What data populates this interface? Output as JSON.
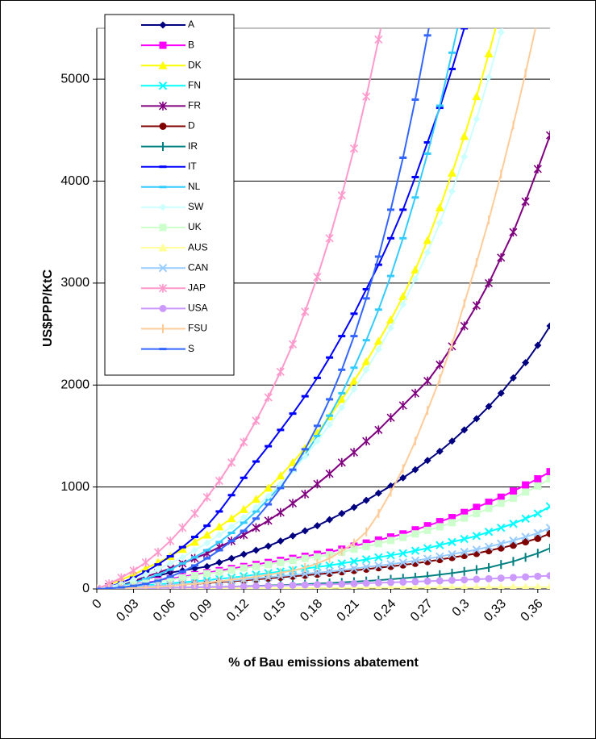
{
  "chart_data": {
    "type": "line",
    "ylabel": "US$PPP/KtC",
    "xlabel": "% of Bau emissions abatement",
    "x": [
      0,
      0.01,
      0.02,
      0.03,
      0.04,
      0.05,
      0.06,
      0.07,
      0.08,
      0.09,
      0.1,
      0.11,
      0.12,
      0.13,
      0.14,
      0.15,
      0.16,
      0.17,
      0.18,
      0.19,
      0.2,
      0.21,
      0.22,
      0.23,
      0.24,
      0.25,
      0.26,
      0.27,
      0.28,
      0.29,
      0.3,
      0.31,
      0.32,
      0.33,
      0.34,
      0.35,
      0.36,
      0.37
    ],
    "xlim": [
      0,
      0.37
    ],
    "xticks": [
      0,
      {
        "value": 0.03,
        "label": "0,03"
      },
      {
        "value": 0.06,
        "label": "0,06"
      },
      {
        "value": 0.09,
        "label": "0,09"
      },
      {
        "value": 0.12,
        "label": "0,12"
      },
      {
        "value": 0.15,
        "label": "0,15"
      },
      {
        "value": 0.18,
        "label": "0,18"
      },
      {
        "value": 0.21,
        "label": "0,21"
      },
      {
        "value": 0.24,
        "label": "0,24"
      },
      {
        "value": 0.27,
        "label": "0,27"
      },
      {
        "value": 0.3,
        "label": "0,3"
      },
      {
        "value": 0.33,
        "label": "0,33"
      },
      {
        "value": 0.36,
        "label": "0,36"
      }
    ],
    "ylim": [
      0,
      5500
    ],
    "yticks": [
      0,
      1000,
      2000,
      3000,
      4000,
      5000
    ],
    "grid": true,
    "legend": "upper left",
    "series": [
      {
        "name": "A",
        "color": "#000080",
        "marker": "diamond",
        "values": [
          0,
          20,
          40,
          70,
          100,
          130,
          160,
          180,
          200,
          220,
          260,
          300,
          340,
          380,
          420,
          470,
          520,
          570,
          620,
          680,
          740,
          800,
          870,
          940,
          1010,
          1090,
          1170,
          1260,
          1350,
          1450,
          1560,
          1670,
          1790,
          1920,
          2070,
          2220,
          2390,
          2580
        ]
      },
      {
        "name": "B",
        "color": "#ff00ff",
        "marker": "square",
        "values": [
          0,
          15,
          30,
          45,
          60,
          80,
          100,
          120,
          140,
          160,
          180,
          200,
          220,
          240,
          260,
          280,
          300,
          320,
          340,
          360,
          390,
          420,
          450,
          480,
          510,
          540,
          580,
          620,
          660,
          700,
          750,
          800,
          850,
          900,
          960,
          1020,
          1080,
          1150
        ]
      },
      {
        "name": "DK",
        "color": "#ffff00",
        "marker": "triangle",
        "values": [
          0,
          40,
          90,
          140,
          200,
          260,
          320,
          390,
          460,
          530,
          610,
          690,
          780,
          880,
          990,
          1110,
          1240,
          1380,
          1530,
          1690,
          1860,
          2040,
          2230,
          2430,
          2640,
          2870,
          3130,
          3420,
          3740,
          4080,
          4440,
          4830,
          5250,
          5700,
          null,
          null,
          null,
          null
        ]
      },
      {
        "name": "FN",
        "color": "#00ffff",
        "marker": "x",
        "values": [
          0,
          5,
          15,
          25,
          35,
          45,
          55,
          65,
          75,
          85,
          100,
          110,
          125,
          140,
          155,
          170,
          185,
          200,
          215,
          230,
          250,
          270,
          290,
          310,
          330,
          350,
          375,
          400,
          430,
          460,
          490,
          520,
          560,
          600,
          640,
          690,
          740,
          810
        ]
      },
      {
        "name": "FR",
        "color": "#800080",
        "marker": "star",
        "values": [
          0,
          20,
          50,
          80,
          120,
          160,
          200,
          250,
          300,
          350,
          410,
          470,
          530,
          600,
          670,
          750,
          840,
          930,
          1030,
          1130,
          1240,
          1340,
          1450,
          1560,
          1680,
          1800,
          1920,
          2040,
          2200,
          2380,
          2580,
          2780,
          3000,
          3250,
          3500,
          3800,
          4120,
          4450
        ]
      },
      {
        "name": "D",
        "color": "#800000",
        "marker": "circle",
        "values": [
          0,
          3,
          10,
          17,
          23,
          30,
          37,
          44,
          50,
          57,
          67,
          74,
          84,
          94,
          104,
          114,
          124,
          134,
          144,
          154,
          168,
          181,
          194,
          208,
          221,
          235,
          251,
          268,
          288,
          308,
          328,
          348,
          375,
          402,
          429,
          462,
          496,
          543
        ]
      },
      {
        "name": "IR",
        "color": "#008080",
        "marker": "plus",
        "values": [
          0,
          2,
          4,
          6,
          8,
          10,
          12,
          14,
          16,
          18,
          20,
          23,
          26,
          30,
          34,
          38,
          42,
          47,
          52,
          58,
          64,
          71,
          78,
          86,
          95,
          105,
          115,
          126,
          140,
          155,
          172,
          190,
          210,
          240,
          270,
          310,
          350,
          400
        ]
      },
      {
        "name": "IT",
        "color": "#0000ff",
        "marker": "dash",
        "values": [
          0,
          20,
          60,
          110,
          170,
          240,
          320,
          410,
          510,
          620,
          760,
          920,
          1090,
          1250,
          1400,
          1560,
          1720,
          1890,
          2070,
          2270,
          2480,
          2700,
          2940,
          3180,
          3440,
          3720,
          4040,
          4380,
          4720,
          5100,
          5500,
          5950,
          null,
          null,
          null,
          null,
          null,
          null
        ]
      },
      {
        "name": "NL",
        "color": "#33ccff",
        "marker": "dash",
        "values": [
          0,
          10,
          30,
          60,
          100,
          140,
          190,
          250,
          310,
          380,
          460,
          550,
          650,
          760,
          880,
          1010,
          1160,
          1320,
          1500,
          1700,
          1920,
          2170,
          2440,
          2740,
          3070,
          3440,
          3840,
          4270,
          4740,
          5260,
          5800,
          null,
          null,
          null,
          null,
          null,
          null,
          null
        ]
      },
      {
        "name": "SW",
        "color": "#ccffff",
        "marker": "diamond",
        "values": [
          0,
          20,
          50,
          90,
          140,
          190,
          250,
          310,
          380,
          450,
          530,
          610,
          700,
          800,
          910,
          1030,
          1160,
          1300,
          1450,
          1610,
          1780,
          1960,
          2150,
          2350,
          2560,
          2790,
          3040,
          3300,
          3590,
          3900,
          4240,
          4610,
          5020,
          5460,
          5940,
          null,
          null,
          null
        ]
      },
      {
        "name": "UK",
        "color": "#ccffcc",
        "marker": "square",
        "values": [
          0,
          10,
          25,
          40,
          55,
          70,
          90,
          110,
          130,
          150,
          165,
          185,
          205,
          220,
          240,
          260,
          280,
          300,
          315,
          335,
          360,
          390,
          415,
          445,
          475,
          505,
          540,
          575,
          610,
          650,
          695,
          740,
          790,
          840,
          890,
          950,
          1010,
          1080
        ]
      },
      {
        "name": "AUS",
        "color": "#ffff99",
        "marker": "triangle",
        "values": [
          0,
          0,
          1,
          1,
          2,
          2,
          3,
          3,
          4,
          4,
          5,
          5,
          6,
          6,
          7,
          7,
          8,
          8,
          9,
          9,
          10,
          10,
          11,
          11,
          12,
          12,
          13,
          13,
          14,
          14,
          15,
          15,
          16,
          16,
          17,
          17,
          18,
          18
        ]
      },
      {
        "name": "CAN",
        "color": "#99ccff",
        "marker": "x",
        "values": [
          0,
          4,
          11,
          19,
          26,
          33,
          41,
          48,
          56,
          63,
          74,
          81,
          93,
          104,
          115,
          126,
          137,
          148,
          159,
          170,
          185,
          200,
          215,
          229,
          244,
          259,
          278,
          296,
          318,
          340,
          363,
          385,
          414,
          444,
          474,
          511,
          548,
          599
        ]
      },
      {
        "name": "JAP",
        "color": "#ff99cc",
        "marker": "star",
        "values": [
          0,
          50,
          110,
          180,
          260,
          360,
          470,
          600,
          740,
          900,
          1060,
          1240,
          1440,
          1650,
          1880,
          2130,
          2400,
          2720,
          3060,
          3440,
          3860,
          4320,
          4830,
          5390,
          6000,
          null,
          null,
          null,
          null,
          null,
          null,
          null,
          null,
          null,
          null,
          null,
          null,
          null
        ]
      },
      {
        "name": "USA",
        "color": "#cc99ff",
        "marker": "circle",
        "values": [
          0,
          1,
          3,
          5,
          7,
          9,
          11,
          13,
          15,
          17,
          19,
          21,
          24,
          27,
          30,
          33,
          36,
          39,
          42,
          45,
          48,
          52,
          56,
          60,
          64,
          68,
          72,
          76,
          80,
          85,
          90,
          95,
          100,
          106,
          112,
          118,
          124,
          130
        ]
      },
      {
        "name": "FSU",
        "color": "#ffcc99",
        "marker": "plus",
        "values": [
          0,
          2,
          5,
          10,
          15,
          20,
          30,
          40,
          50,
          60,
          75,
          90,
          105,
          120,
          140,
          160,
          180,
          210,
          250,
          300,
          370,
          450,
          560,
          740,
          950,
          1180,
          1450,
          1750,
          2060,
          2400,
          2800,
          3200,
          3620,
          4070,
          4550,
          5060,
          5600,
          null
        ]
      },
      {
        "name": "S",
        "color": "#3366ff",
        "marker": "dash",
        "values": [
          0,
          5,
          15,
          30,
          50,
          80,
          120,
          170,
          230,
          300,
          380,
          470,
          570,
          690,
          830,
          990,
          1170,
          1370,
          1600,
          1860,
          2150,
          2480,
          2850,
          3260,
          3720,
          4230,
          4800,
          5430,
          6100,
          null,
          null,
          null,
          null,
          null,
          null,
          null,
          null,
          null
        ]
      }
    ]
  }
}
